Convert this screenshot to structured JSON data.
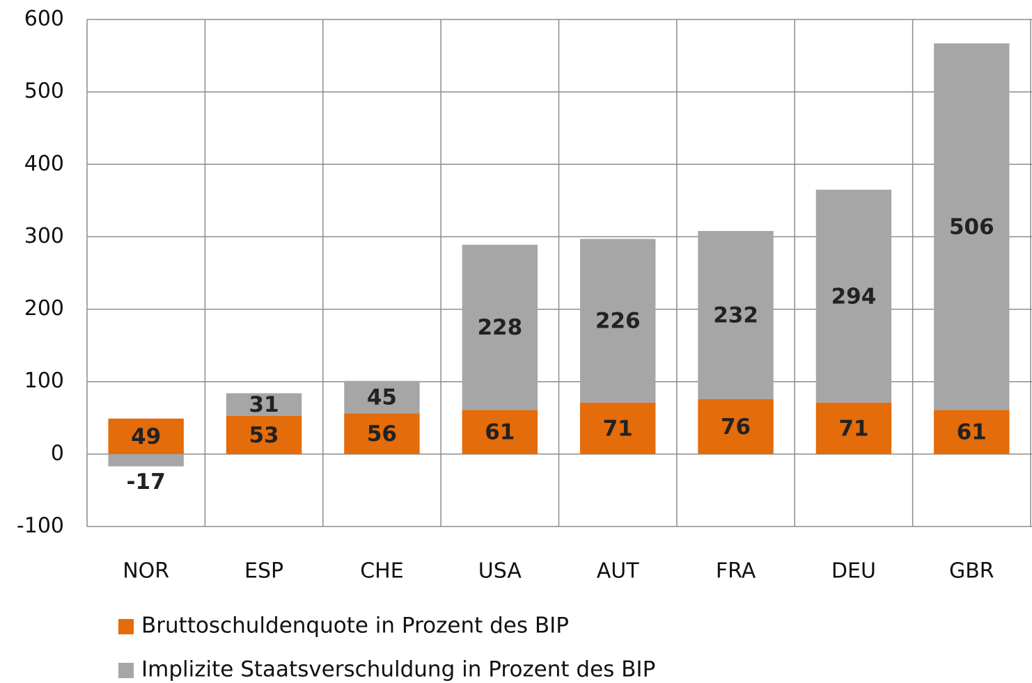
{
  "chart_data": {
    "type": "stacked_bar",
    "categories": [
      "NOR",
      "ESP",
      "CHE",
      "USA",
      "AUT",
      "FRA",
      "DEU",
      "GBR"
    ],
    "series": [
      {
        "name": "Bruttoschuldenquote in Prozent des BIP",
        "color": "#e46c0a",
        "values": [
          49,
          53,
          56,
          61,
          71,
          76,
          71,
          61
        ]
      },
      {
        "name": "Implizite Staatsverschuldung in Prozent des BIP",
        "color": "#a6a6a6",
        "values": [
          -17,
          31,
          45,
          228,
          226,
          232,
          294,
          506
        ]
      }
    ],
    "ylim": [
      -100,
      600
    ],
    "yticks": [
      -100,
      0,
      100,
      200,
      300,
      400,
      500,
      600
    ],
    "grid": true
  }
}
